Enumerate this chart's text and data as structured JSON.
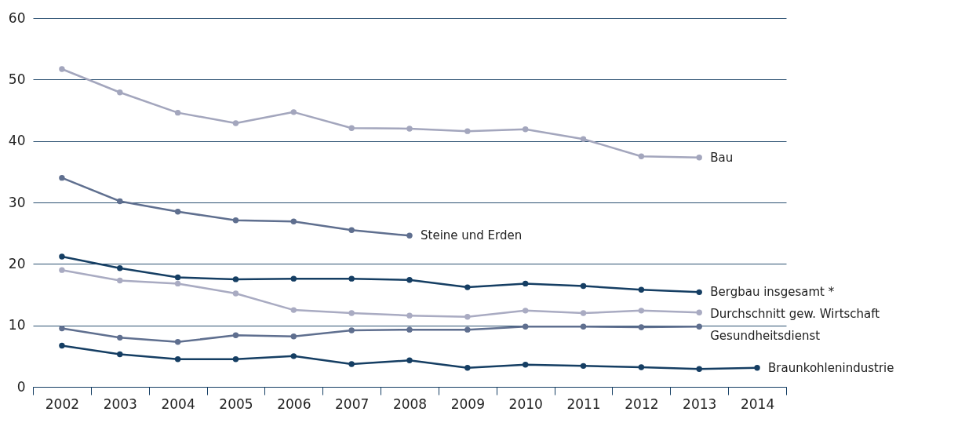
{
  "chart_data": {
    "type": "line",
    "categories": [
      "2002",
      "2003",
      "2004",
      "2005",
      "2006",
      "2007",
      "2008",
      "2009",
      "2010",
      "2011",
      "2012",
      "2013",
      "2014"
    ],
    "ylim": [
      0,
      60
    ],
    "yticks": [
      0,
      10,
      20,
      30,
      40,
      50,
      60
    ],
    "grid": "y",
    "marker": "circle",
    "series": [
      {
        "name": "Bau",
        "color": "#a3a6bd",
        "values": [
          51.7,
          47.9,
          44.6,
          42.9,
          44.7,
          42.1,
          42.0,
          41.6,
          41.9,
          40.3,
          37.5,
          37.3,
          null
        ]
      },
      {
        "name": "Steine und Erden",
        "color": "#5f6f8f",
        "values": [
          34.0,
          30.2,
          28.5,
          27.1,
          26.9,
          25.5,
          24.6,
          null,
          null,
          null,
          null,
          null,
          null
        ]
      },
      {
        "name": "Bergbau insgesamt *",
        "color": "#153e63",
        "values": [
          21.2,
          19.3,
          17.8,
          17.5,
          17.6,
          17.6,
          17.4,
          16.2,
          16.8,
          16.4,
          15.8,
          15.4,
          null
        ]
      },
      {
        "name": "Durchschnitt gew. Wirtschaft",
        "color": "#a9abc2",
        "values": [
          19.0,
          17.3,
          16.8,
          15.2,
          12.5,
          12.0,
          11.6,
          11.4,
          12.4,
          12.0,
          12.4,
          12.1,
          null
        ]
      },
      {
        "name": "Gesundheitsdienst",
        "color": "#5f6f8f",
        "values": [
          9.5,
          8.0,
          7.3,
          8.4,
          8.2,
          9.2,
          9.3,
          9.3,
          9.8,
          9.8,
          9.7,
          9.8,
          null
        ]
      },
      {
        "name": "Braunkohlenindustrie",
        "color": "#153e63",
        "values": [
          6.7,
          5.3,
          4.5,
          4.5,
          5.0,
          3.7,
          4.3,
          3.1,
          3.6,
          3.4,
          3.2,
          2.9,
          3.1
        ]
      }
    ]
  }
}
